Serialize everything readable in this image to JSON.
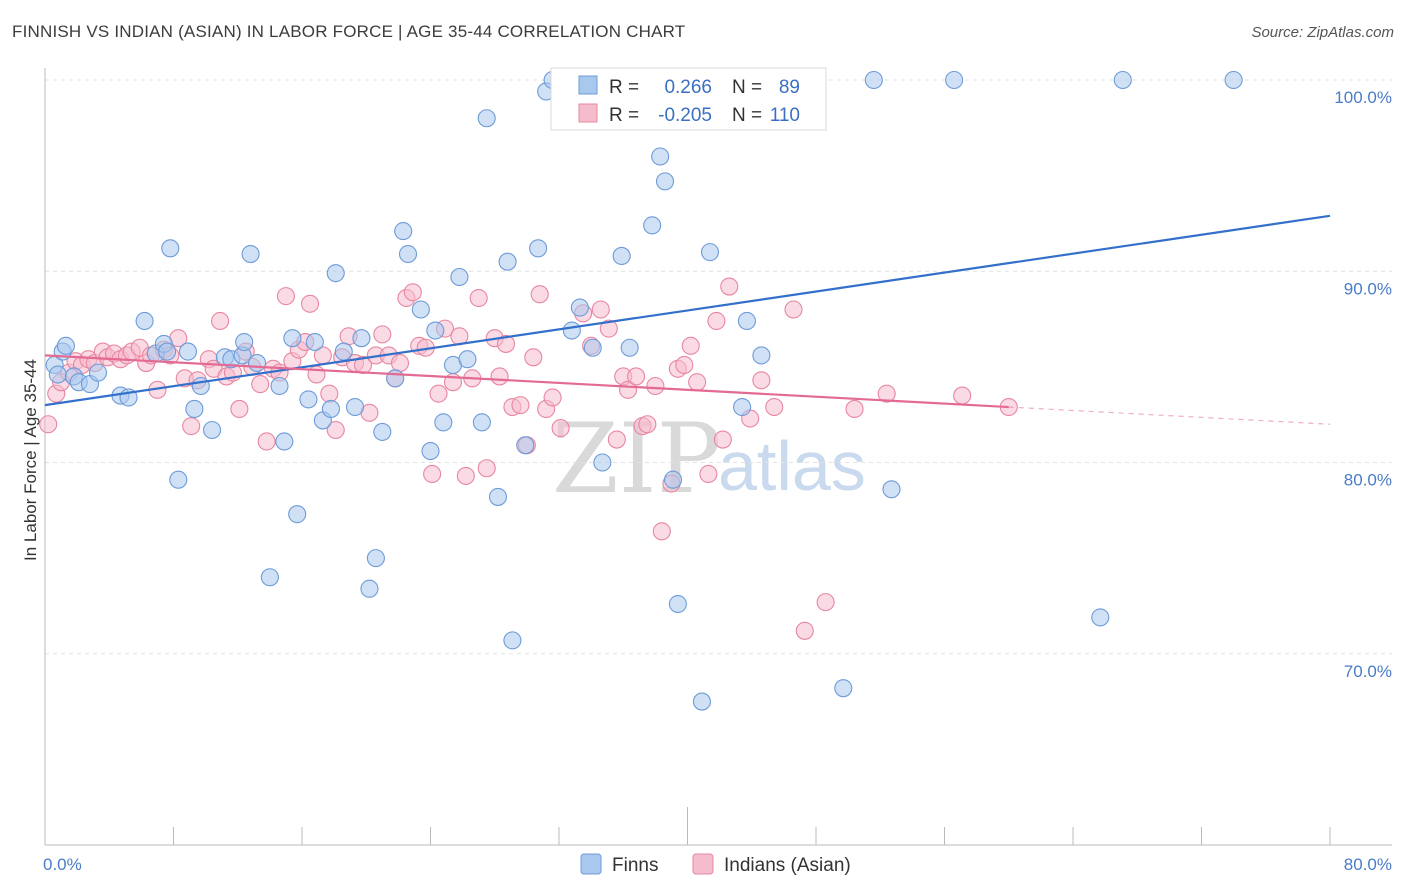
{
  "header": {
    "title": "FINNISH VS INDIAN (ASIAN) IN LABOR FORCE | AGE 35-44 CORRELATION CHART",
    "source": "Source: ZipAtlas.com"
  },
  "watermark": {
    "zip": "ZIP",
    "atlas": "atlas"
  },
  "legend_box": {
    "r_label": "R =",
    "n_label": "N =",
    "rows": [
      {
        "r": "0.266",
        "n": "89",
        "color": "#a9c8ee"
      },
      {
        "r": "-0.205",
        "n": "110",
        "color": "#f5bccd"
      }
    ]
  },
  "chart_data": {
    "type": "scatter",
    "title": "FINNISH VS INDIAN (ASIAN) IN LABOR FORCE | AGE 35-44 CORRELATION CHART",
    "xlabel": "",
    "ylabel": "In Labor Force | Age 35-44",
    "xlim": [
      0,
      80
    ],
    "ylim": [
      60,
      100
    ],
    "x_tick_labels": [
      "0.0%",
      "80.0%"
    ],
    "y_ticks": [
      70,
      80,
      90,
      100
    ],
    "y_tick_labels": [
      "70.0%",
      "80.0%",
      "90.0%",
      "100.0%"
    ],
    "grid": "horizontal dashed",
    "legend_position": "bottom-center",
    "series": [
      {
        "name": "Finns",
        "color": "#a9c8ee",
        "edge": "#6d9bd8",
        "line_color": "#3370cc",
        "r": 0.266,
        "n": 89,
        "trend": {
          "x": [
            0,
            80
          ],
          "y": [
            83.0,
            92.9
          ]
        },
        "points": [
          [
            0.6,
            85.1
          ],
          [
            0.8,
            84.6
          ],
          [
            1.1,
            85.8
          ],
          [
            1.3,
            86.1
          ],
          [
            1.8,
            84.5
          ],
          [
            2.1,
            84.2
          ],
          [
            2.8,
            84.1
          ],
          [
            3.3,
            84.7
          ],
          [
            4.7,
            83.5
          ],
          [
            5.2,
            83.4
          ],
          [
            6.2,
            87.4
          ],
          [
            6.9,
            85.7
          ],
          [
            7.4,
            86.2
          ],
          [
            7.6,
            85.8
          ],
          [
            7.8,
            91.2
          ],
          [
            8.3,
            79.1
          ],
          [
            8.9,
            85.8
          ],
          [
            9.3,
            82.8
          ],
          [
            9.7,
            84.0
          ],
          [
            10.4,
            81.7
          ],
          [
            11.2,
            85.5
          ],
          [
            11.6,
            85.4
          ],
          [
            12.3,
            85.6
          ],
          [
            12.4,
            86.3
          ],
          [
            12.8,
            90.9
          ],
          [
            13.2,
            85.2
          ],
          [
            14.0,
            74.0
          ],
          [
            14.6,
            84.0
          ],
          [
            14.9,
            81.1
          ],
          [
            15.4,
            86.5
          ],
          [
            15.7,
            77.3
          ],
          [
            16.4,
            83.3
          ],
          [
            16.8,
            86.3
          ],
          [
            17.3,
            82.2
          ],
          [
            17.8,
            82.8
          ],
          [
            18.1,
            89.9
          ],
          [
            18.6,
            85.8
          ],
          [
            19.3,
            82.9
          ],
          [
            19.7,
            86.5
          ],
          [
            20.2,
            73.4
          ],
          [
            20.6,
            75.0
          ],
          [
            21.0,
            81.6
          ],
          [
            21.8,
            84.4
          ],
          [
            22.3,
            92.1
          ],
          [
            22.6,
            90.9
          ],
          [
            23.4,
            88.0
          ],
          [
            24.0,
            80.6
          ],
          [
            24.3,
            86.9
          ],
          [
            24.8,
            82.1
          ],
          [
            25.4,
            85.1
          ],
          [
            25.8,
            89.7
          ],
          [
            26.3,
            85.4
          ],
          [
            27.2,
            82.1
          ],
          [
            27.5,
            98.0
          ],
          [
            28.2,
            78.2
          ],
          [
            28.8,
            90.5
          ],
          [
            29.1,
            70.7
          ],
          [
            29.9,
            80.9
          ],
          [
            30.7,
            91.2
          ],
          [
            31.2,
            99.4
          ],
          [
            31.6,
            100.0
          ],
          [
            32.4,
            100.0
          ],
          [
            32.8,
            86.9
          ],
          [
            33.3,
            88.1
          ],
          [
            34.1,
            86.0
          ],
          [
            34.7,
            80.0
          ],
          [
            35.4,
            100.0
          ],
          [
            35.9,
            90.8
          ],
          [
            36.4,
            86.0
          ],
          [
            37.1,
            100.0
          ],
          [
            37.8,
            92.4
          ],
          [
            38.3,
            96.0
          ],
          [
            38.6,
            94.7
          ],
          [
            39.1,
            79.1
          ],
          [
            39.4,
            72.6
          ],
          [
            40.5,
            100.0
          ],
          [
            40.9,
            67.5
          ],
          [
            41.4,
            91.0
          ],
          [
            42.5,
            100.0
          ],
          [
            43.4,
            82.9
          ],
          [
            43.7,
            87.4
          ],
          [
            44.6,
            85.6
          ],
          [
            45.2,
            100.0
          ],
          [
            46.1,
            100.0
          ],
          [
            49.7,
            68.2
          ],
          [
            51.6,
            100.0
          ],
          [
            52.7,
            78.6
          ],
          [
            56.6,
            100.0
          ],
          [
            67.1,
            100.0
          ],
          [
            65.7,
            71.9
          ],
          [
            74.0,
            100.0
          ]
        ]
      },
      {
        "name": "Indians (Asian)",
        "color": "#f5bccd",
        "edge": "#e8879f",
        "line_color": "#e36a92",
        "r": -0.205,
        "n": 110,
        "trend": {
          "x": [
            0,
            60
          ],
          "y": [
            85.6,
            82.9
          ]
        },
        "trend_dashed": {
          "x": [
            60,
            80
          ],
          "y": [
            82.9,
            82.0
          ]
        },
        "points": [
          [
            0.2,
            82.0
          ],
          [
            0.7,
            83.6
          ],
          [
            1.0,
            84.2
          ],
          [
            1.5,
            84.7
          ],
          [
            1.9,
            85.3
          ],
          [
            2.3,
            85.1
          ],
          [
            2.7,
            85.4
          ],
          [
            3.1,
            85.2
          ],
          [
            3.6,
            85.8
          ],
          [
            3.9,
            85.5
          ],
          [
            4.3,
            85.7
          ],
          [
            4.7,
            85.4
          ],
          [
            5.1,
            85.6
          ],
          [
            5.4,
            85.8
          ],
          [
            5.9,
            86.0
          ],
          [
            6.3,
            85.2
          ],
          [
            6.6,
            85.6
          ],
          [
            7.0,
            83.8
          ],
          [
            7.4,
            85.9
          ],
          [
            7.8,
            85.6
          ],
          [
            8.3,
            86.5
          ],
          [
            8.7,
            84.4
          ],
          [
            9.1,
            81.9
          ],
          [
            9.5,
            84.3
          ],
          [
            10.2,
            85.4
          ],
          [
            10.5,
            84.9
          ],
          [
            10.9,
            87.4
          ],
          [
            11.3,
            84.5
          ],
          [
            11.7,
            84.7
          ],
          [
            12.1,
            82.8
          ],
          [
            12.5,
            85.8
          ],
          [
            12.9,
            85.0
          ],
          [
            13.4,
            84.1
          ],
          [
            13.8,
            81.1
          ],
          [
            14.2,
            84.9
          ],
          [
            14.6,
            84.7
          ],
          [
            15.0,
            88.7
          ],
          [
            15.4,
            85.3
          ],
          [
            15.8,
            85.9
          ],
          [
            16.2,
            86.3
          ],
          [
            16.5,
            88.3
          ],
          [
            16.9,
            84.6
          ],
          [
            17.3,
            85.6
          ],
          [
            17.7,
            83.6
          ],
          [
            18.1,
            81.7
          ],
          [
            18.5,
            85.5
          ],
          [
            18.9,
            86.6
          ],
          [
            19.3,
            85.2
          ],
          [
            19.8,
            85.1
          ],
          [
            20.2,
            82.6
          ],
          [
            20.6,
            85.6
          ],
          [
            21.0,
            86.7
          ],
          [
            21.4,
            85.6
          ],
          [
            21.8,
            84.4
          ],
          [
            22.1,
            85.2
          ],
          [
            22.5,
            88.6
          ],
          [
            22.9,
            88.9
          ],
          [
            23.3,
            86.1
          ],
          [
            23.7,
            86.0
          ],
          [
            24.1,
            79.4
          ],
          [
            24.5,
            83.6
          ],
          [
            24.9,
            87.0
          ],
          [
            25.4,
            84.2
          ],
          [
            25.8,
            86.6
          ],
          [
            26.2,
            79.3
          ],
          [
            26.6,
            84.4
          ],
          [
            27.0,
            88.6
          ],
          [
            27.5,
            79.7
          ],
          [
            28.0,
            86.5
          ],
          [
            28.3,
            84.5
          ],
          [
            28.7,
            86.2
          ],
          [
            29.1,
            82.9
          ],
          [
            29.6,
            83.0
          ],
          [
            30.0,
            80.9
          ],
          [
            30.4,
            85.5
          ],
          [
            30.8,
            88.8
          ],
          [
            31.2,
            82.8
          ],
          [
            31.6,
            83.4
          ],
          [
            32.1,
            81.8
          ],
          [
            33.5,
            87.8
          ],
          [
            34.0,
            86.1
          ],
          [
            34.6,
            88.0
          ],
          [
            35.1,
            87.0
          ],
          [
            35.6,
            81.2
          ],
          [
            36.0,
            84.5
          ],
          [
            36.3,
            83.8
          ],
          [
            36.8,
            84.5
          ],
          [
            37.2,
            81.9
          ],
          [
            37.5,
            82.0
          ],
          [
            38.0,
            84.0
          ],
          [
            38.4,
            76.4
          ],
          [
            39.0,
            78.9
          ],
          [
            39.4,
            84.9
          ],
          [
            39.8,
            85.1
          ],
          [
            40.2,
            86.1
          ],
          [
            40.6,
            84.2
          ],
          [
            41.3,
            79.4
          ],
          [
            41.8,
            87.4
          ],
          [
            42.2,
            81.2
          ],
          [
            42.6,
            89.2
          ],
          [
            43.9,
            82.3
          ],
          [
            44.6,
            84.3
          ],
          [
            45.4,
            82.9
          ],
          [
            46.6,
            88.0
          ],
          [
            47.3,
            71.2
          ],
          [
            48.6,
            72.7
          ],
          [
            50.4,
            82.8
          ],
          [
            52.4,
            83.6
          ],
          [
            57.1,
            83.5
          ],
          [
            60.0,
            82.9
          ]
        ]
      }
    ]
  }
}
